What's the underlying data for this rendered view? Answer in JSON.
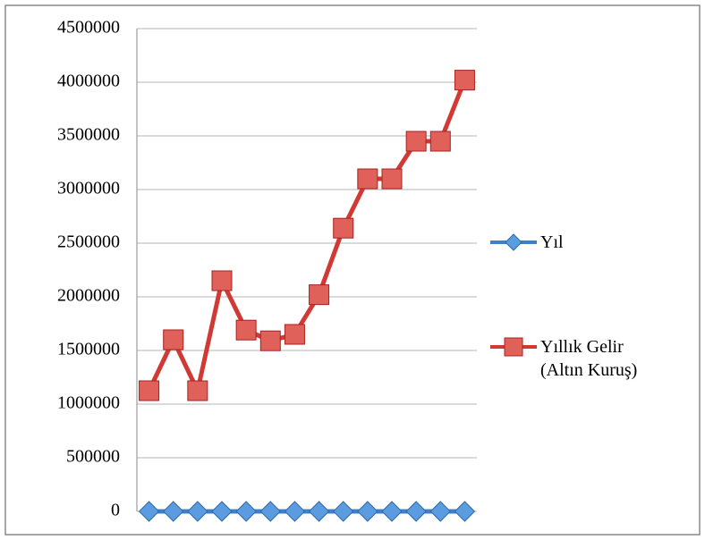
{
  "chart_data": {
    "type": "line",
    "categories": [
      null,
      null,
      null,
      null,
      null,
      null,
      null,
      null,
      null,
      null,
      null,
      null,
      null,
      null
    ],
    "series": [
      {
        "name": "Yıl",
        "color": "#3f80c8",
        "marker": "diamond",
        "values": [
          0,
          0,
          0,
          0,
          0,
          0,
          0,
          0,
          0,
          0,
          0,
          0,
          0,
          0
        ]
      },
      {
        "name": "Yıllık Gelir (Altın Kuruş)",
        "color": "#d13a34",
        "marker": "square",
        "values": [
          1125000,
          1600000,
          1125000,
          2150000,
          1690000,
          1590000,
          1650000,
          2020000,
          2640000,
          3100000,
          3100000,
          3450000,
          3450000,
          4020000
        ]
      }
    ],
    "ylim": [
      0,
      4500000
    ],
    "yticks": [
      0,
      500000,
      1000000,
      1500000,
      2000000,
      2500000,
      3000000,
      3500000,
      4000000,
      4500000
    ],
    "grid": true,
    "legend": "right"
  }
}
